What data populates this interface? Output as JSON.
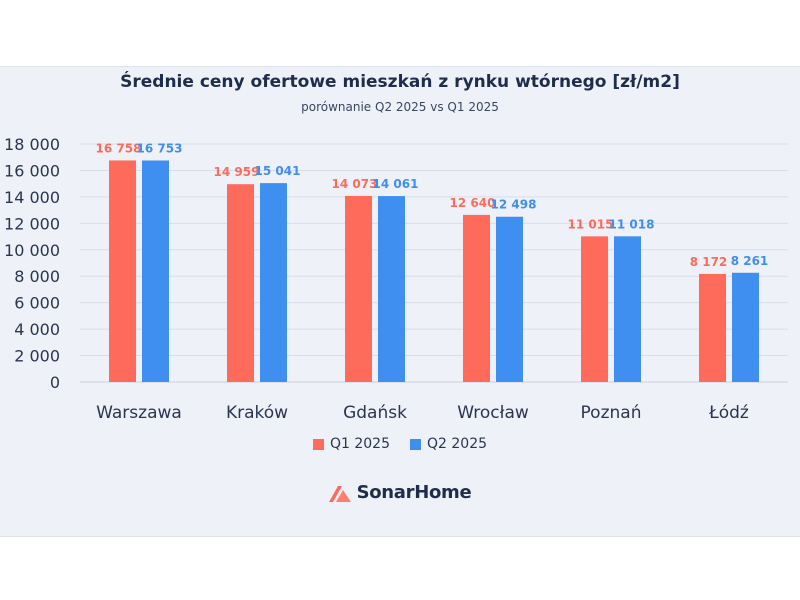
{
  "chart_data": {
    "type": "bar",
    "title": "Średnie ceny ofertowe mieszkań z rynku wtórnego [zł/m2]",
    "subtitle": "porównanie Q2 2025 vs Q1 2025",
    "categories": [
      "Warszawa",
      "Kraków",
      "Gdańsk",
      "Wrocław",
      "Poznań",
      "Łódź"
    ],
    "series": [
      {
        "name": "Q1 2025",
        "color": "#ff6b5b",
        "values": [
          16758,
          14959,
          14073,
          12640,
          11015,
          8172
        ],
        "labels": [
          "16 758",
          "14 959",
          "14 073",
          "12 640",
          "11 015",
          "8 172"
        ]
      },
      {
        "name": "Q2 2025",
        "color": "#3f8ff0",
        "values": [
          16753,
          15041,
          14061,
          12498,
          11018,
          8261
        ],
        "labels": [
          "16 753",
          "15 041",
          "14 061",
          "12 498",
          "11 018",
          "8 261"
        ]
      }
    ],
    "yticks": [
      0,
      2000,
      4000,
      6000,
      8000,
      10000,
      12000,
      14000,
      16000,
      18000
    ],
    "ytick_labels": [
      "0",
      "2 000",
      "4 000",
      "6 000",
      "8 000",
      "10 000",
      "12 000",
      "14 000",
      "16 000",
      "18 000"
    ],
    "ylim": [
      0,
      18000
    ],
    "xlabel": "",
    "ylabel": "",
    "grid": true,
    "legend_position": "bottom"
  },
  "brand": {
    "name": "SonarHome",
    "color": "#ff6b5b"
  }
}
